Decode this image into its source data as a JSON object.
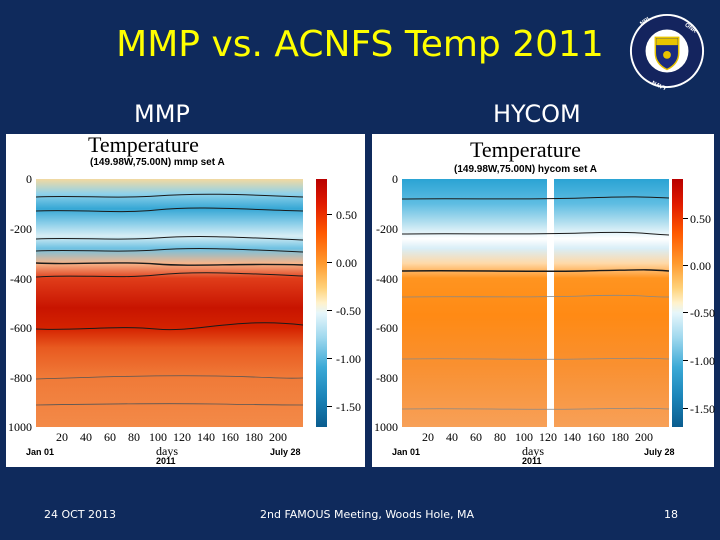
{
  "slide": {
    "title": "MMP vs. ACNFS Temp 2011",
    "left_label": "MMP",
    "right_label": "HYCOM",
    "footer_date": "24 OCT 2013",
    "footer_meeting": "2nd FAMOUS Meeting, Woods Hole, MA",
    "page_number": "18"
  },
  "panels": [
    {
      "title": "Temperature",
      "subtitle": "(149.98W,75.00N) mmp set A",
      "y_ticks": [
        "0",
        "-200",
        "-400",
        "-600",
        "-800",
        "1000"
      ],
      "x_ticks": [
        "20",
        "40",
        "60",
        "80",
        "100",
        "120",
        "140",
        "160",
        "180",
        "200"
      ],
      "x_start": "Jan 01",
      "x_end": "July 28",
      "x_label": "days",
      "x_year": "2011",
      "colorbar_ticks": [
        "0.50",
        "0.00",
        "-0.50",
        "-1.00",
        "-1.50"
      ]
    },
    {
      "title": "Temperature",
      "subtitle": "(149.98W,75.00N) hycom set A",
      "y_ticks": [
        "0",
        "-200",
        "-400",
        "-600",
        "-800",
        "1000"
      ],
      "x_ticks": [
        "20",
        "40",
        "60",
        "80",
        "100",
        "120",
        "140",
        "160",
        "180",
        "200"
      ],
      "x_start": "Jan 01",
      "x_end": "July 28",
      "x_label": "days",
      "x_year": "2011",
      "colorbar_ticks": [
        "0.50",
        "0.00",
        "-0.50",
        "-1.00",
        "-1.50"
      ]
    }
  ],
  "colors": {
    "background": "#0f2a5c",
    "title": "#ffff00",
    "text": "#ffffff"
  },
  "icons": [
    "naval-research-laboratory-seal-icon"
  ]
}
